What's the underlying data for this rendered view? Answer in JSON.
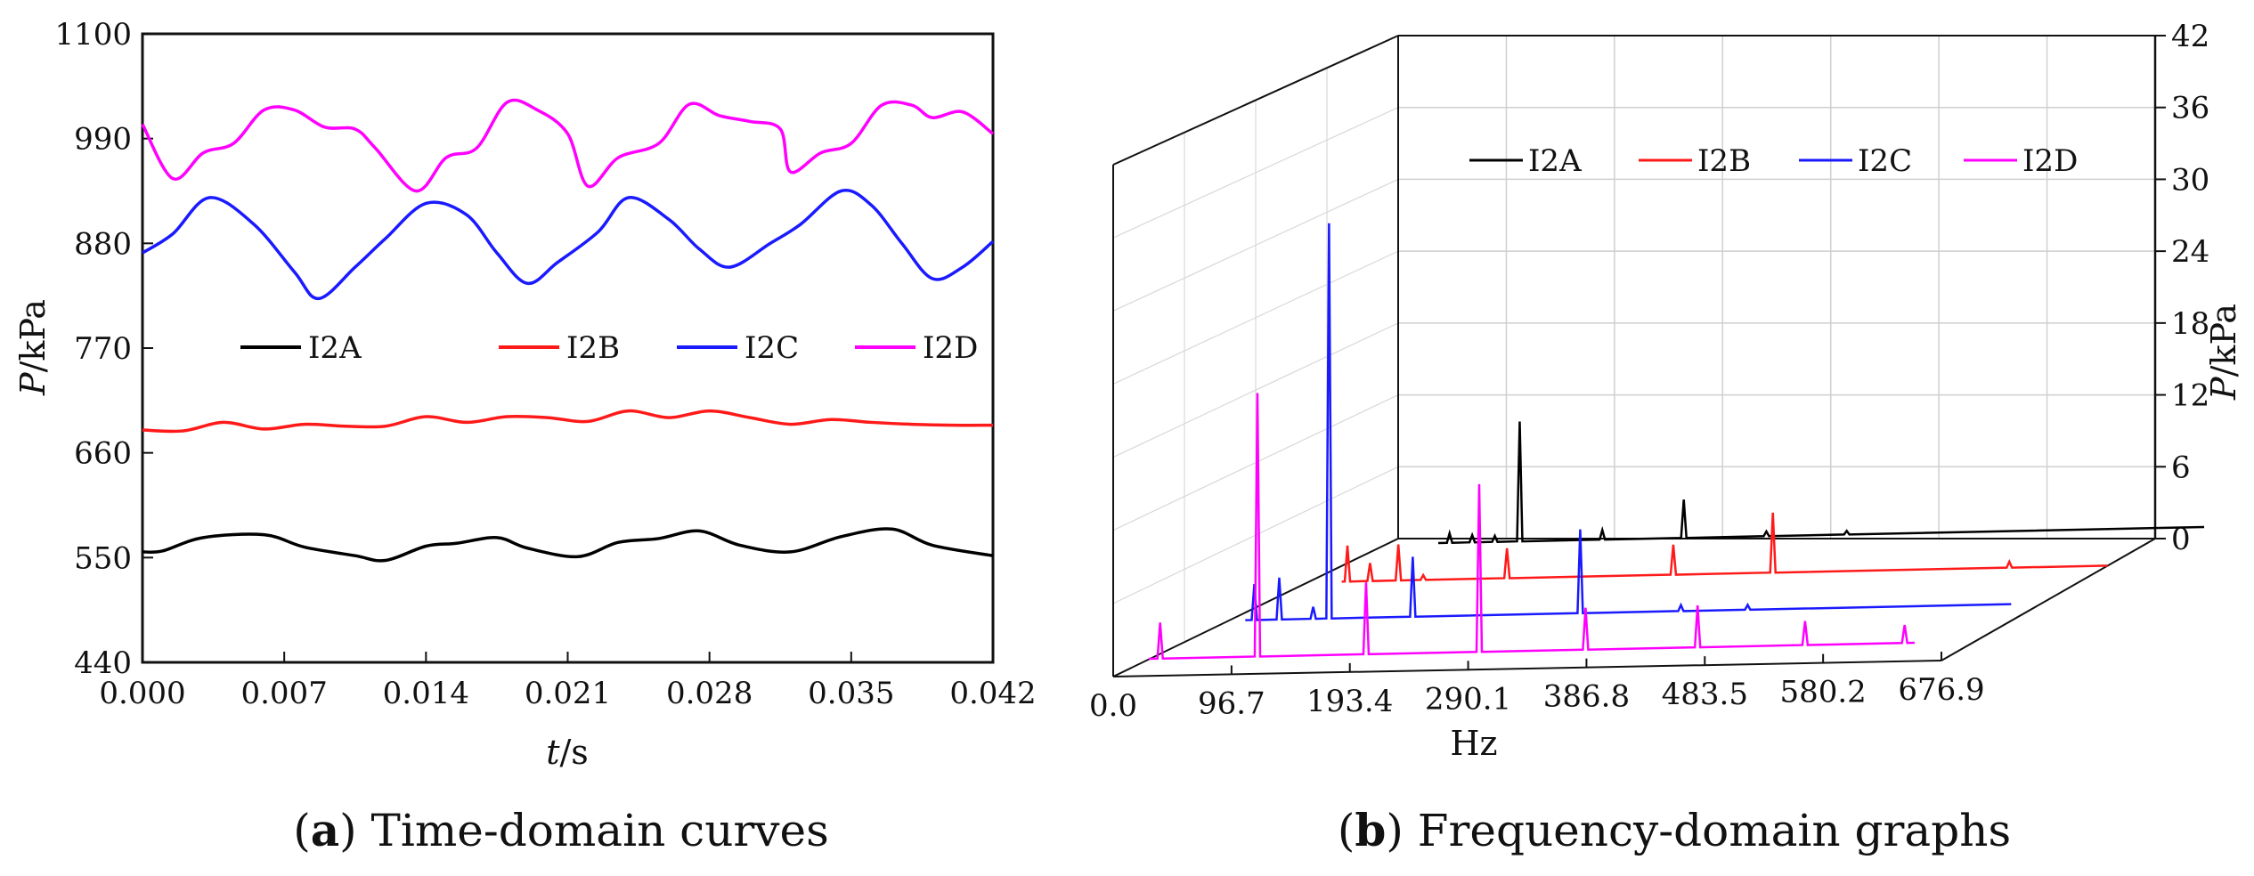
{
  "chart_data": [
    {
      "type": "line",
      "panel_label": "a",
      "caption": "Time-domain curves",
      "xlabel_italic": "t",
      "xlabel_unit": "/s",
      "ylabel_italic": "P",
      "ylabel_unit": "/kPa",
      "xlim": [
        0,
        0.042
      ],
      "ylim": [
        440,
        1100
      ],
      "xticks": [
        "0.000",
        "0.007",
        "0.014",
        "0.021",
        "0.028",
        "0.035",
        "0.042"
      ],
      "yticks": [
        "440",
        "550",
        "660",
        "770",
        "880",
        "990",
        "1100"
      ],
      "legend_position": "middle",
      "series": [
        {
          "name": "I2A",
          "color": "#000000",
          "x": [
            0,
            0.001,
            0.003,
            0.006,
            0.008,
            0.0105,
            0.012,
            0.014,
            0.0155,
            0.0175,
            0.019,
            0.0215,
            0.0235,
            0.0255,
            0.0275,
            0.0295,
            0.032,
            0.0345,
            0.037,
            0.039,
            0.042
          ],
          "y": [
            556,
            557,
            571,
            574,
            561,
            552,
            547,
            562,
            565,
            571,
            560,
            551,
            566,
            570,
            578,
            563,
            556,
            572,
            580,
            563,
            552
          ]
        },
        {
          "name": "I2B",
          "color": "#ff1a1a",
          "x": [
            0,
            0.002,
            0.004,
            0.006,
            0.008,
            0.01,
            0.012,
            0.014,
            0.016,
            0.018,
            0.02,
            0.022,
            0.024,
            0.026,
            0.028,
            0.03,
            0.032,
            0.034,
            0.036,
            0.038,
            0.04,
            0.042
          ],
          "y": [
            684,
            683,
            692,
            685,
            690,
            688,
            688,
            698,
            692,
            698,
            697,
            693,
            704,
            697,
            704,
            697,
            690,
            695,
            692,
            690,
            689,
            689
          ]
        },
        {
          "name": "I2C",
          "color": "#1a1aff",
          "x": [
            0,
            0.0015,
            0.0033,
            0.0055,
            0.0075,
            0.0087,
            0.0105,
            0.012,
            0.014,
            0.016,
            0.0175,
            0.019,
            0.0205,
            0.0225,
            0.024,
            0.026,
            0.0275,
            0.029,
            0.031,
            0.0325,
            0.0345,
            0.036,
            0.0375,
            0.039,
            0.0405,
            0.042
          ],
          "y": [
            870,
            890,
            928,
            900,
            850,
            822,
            855,
            885,
            922,
            910,
            870,
            838,
            860,
            892,
            928,
            905,
            874,
            855,
            880,
            900,
            935,
            920,
            880,
            843,
            855,
            882
          ]
        },
        {
          "name": "I2D",
          "color": "#ff00ff",
          "x": [
            0,
            0.0015,
            0.003,
            0.0045,
            0.006,
            0.0075,
            0.009,
            0.0105,
            0.0115,
            0.0135,
            0.015,
            0.0165,
            0.018,
            0.0195,
            0.021,
            0.022,
            0.0235,
            0.0255,
            0.027,
            0.0285,
            0.03,
            0.0315,
            0.032,
            0.0335,
            0.035,
            0.0365,
            0.038,
            0.039,
            0.0405,
            0.042
          ],
          "y": [
            1005,
            948,
            975,
            985,
            1020,
            1020,
            1002,
            1000,
            980,
            935,
            970,
            980,
            1028,
            1020,
            995,
            940,
            970,
            985,
            1026,
            1014,
            1008,
            1000,
            955,
            975,
            985,
            1025,
            1025,
            1012,
            1018,
            995
          ]
        }
      ]
    },
    {
      "type": "line",
      "subtype": "3d-waterfall",
      "panel_label": "b",
      "caption": "Frequency-domain graphs",
      "xlabel": "Hz",
      "ylabel_italic": "P",
      "ylabel_unit": "/kPa",
      "xlim": [
        0,
        676.9
      ],
      "zlim": [
        0,
        42
      ],
      "xticks": [
        "0.0",
        "96.7",
        "193.4",
        "290.1",
        "386.8",
        "483.5",
        "580.2",
        "676.9"
      ],
      "zticks": [
        "0",
        "6",
        "12",
        "18",
        "24",
        "30",
        "36",
        "42"
      ],
      "legend_position": "top",
      "series": [
        {
          "name": "I2A",
          "color": "#000000",
          "peaks": [
            [
              10,
              0.8
            ],
            [
              30,
              0.6
            ],
            [
              50,
              0.5
            ],
            [
              72,
              10.0
            ],
            [
              145,
              0.8
            ],
            [
              217,
              3.2
            ],
            [
              290,
              0.4
            ],
            [
              361,
              0.3
            ]
          ]
        },
        {
          "name": "I2B",
          "color": "#ff1a1a",
          "peaks": [
            [
              5,
              3.0
            ],
            [
              25,
              1.5
            ],
            [
              50,
              3.0
            ],
            [
              72,
              0.4
            ],
            [
              146,
              2.5
            ],
            [
              293,
              2.5
            ],
            [
              381,
              5.0
            ],
            [
              590,
              0.5
            ]
          ]
        },
        {
          "name": "I2C",
          "color": "#1a1aff",
          "peaks": [
            [
              8,
              3.0
            ],
            [
              30,
              3.5
            ],
            [
              60,
              1.0
            ],
            [
              74,
              33.0
            ],
            [
              148,
              5.0
            ],
            [
              296,
              7.0
            ],
            [
              385,
              0.5
            ],
            [
              444,
              0.4
            ]
          ]
        },
        {
          "name": "I2D",
          "color": "#ff00ff",
          "peaks": [
            [
              10,
              3.0
            ],
            [
              96,
              22.0
            ],
            [
              192,
              6.0
            ],
            [
              292,
              14.0
            ],
            [
              386,
              3.5
            ],
            [
              485,
              3.5
            ],
            [
              580,
              2.0
            ],
            [
              668,
              1.5
            ]
          ]
        }
      ]
    }
  ]
}
